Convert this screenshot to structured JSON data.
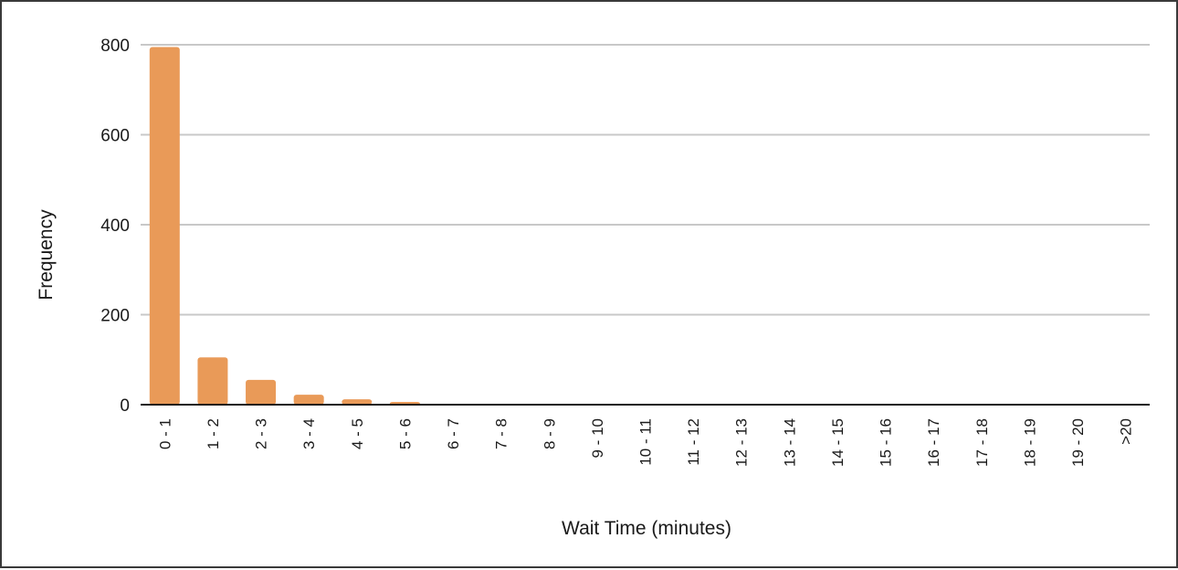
{
  "chart_data": {
    "type": "bar",
    "title": "",
    "xlabel": "Wait Time (minutes)",
    "ylabel": "Frequency",
    "categories": [
      "0 - 1",
      "1 - 2",
      "2 - 3",
      "3 - 4",
      "4 - 5",
      "5 - 6",
      "6 - 7",
      "7 - 8",
      "8 - 9",
      "9 - 10",
      "10 - 11",
      "11 - 12",
      "12 - 13",
      "13 - 14",
      "14 - 15",
      "15 - 16",
      "16 - 17",
      "17 - 18",
      "18 - 19",
      "19 - 20",
      ">20"
    ],
    "values": [
      795,
      105,
      55,
      22,
      12,
      6,
      1,
      0,
      0,
      0,
      0,
      0,
      0,
      0,
      0,
      0,
      0,
      0,
      0,
      0,
      0
    ],
    "ylim": [
      0,
      800
    ],
    "yticks": [
      0,
      200,
      400,
      600,
      800
    ],
    "grid": true,
    "bar_color": "#e99a58",
    "grid_color": "#c8c8c8",
    "axis_color": "#1a1a1a"
  }
}
